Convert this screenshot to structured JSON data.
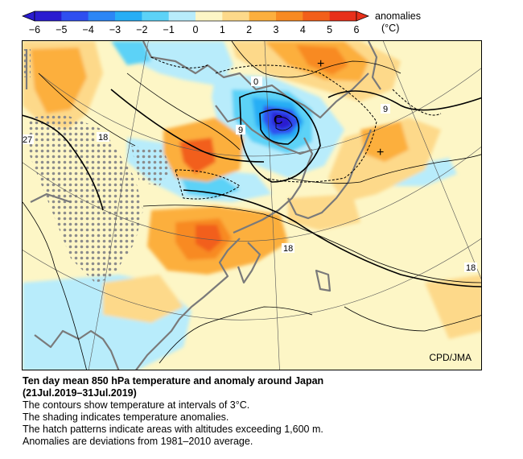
{
  "colorbar": {
    "title": "anomalies",
    "unit": "(°C)",
    "ticks": [
      "−6",
      "−5",
      "−4",
      "−3",
      "−2",
      "−1",
      "0",
      "1",
      "2",
      "3",
      "4",
      "5",
      "6"
    ],
    "colors": [
      "#2a1bd0",
      "#2f4ff0",
      "#2c86f5",
      "#27aef5",
      "#5cd2f7",
      "#b8ecfb",
      "#fdf6c6",
      "#fdd98a",
      "#fcaf3e",
      "#f88a22",
      "#f25f1a",
      "#e8301a"
    ]
  },
  "map": {
    "credit": "CPD/JMA",
    "contour_labels": [
      "0",
      "9",
      "9",
      "18",
      "18",
      "18",
      "27",
      "0"
    ],
    "symbols": [
      "+",
      "+",
      "C"
    ]
  },
  "caption": {
    "title": "Ten day mean 850 hPa temperature and anomaly around Japan",
    "period": "(21Jul.2019–31Jul.2019)",
    "lines": [
      "The contours show temperature at intervals of 3°C.",
      "The shading indicates temperature anomalies.",
      "The hatch patterns indicate areas with altitudes exceeding 1,600 m.",
      "Anomalies are deviations from 1981–2010 average."
    ]
  }
}
